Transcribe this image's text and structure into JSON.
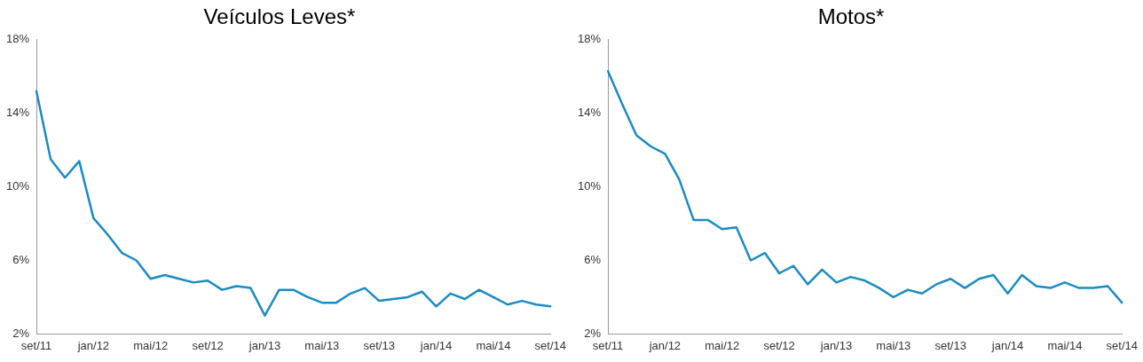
{
  "chart_data": [
    {
      "type": "line",
      "title": "Veículos Leves*",
      "categories": [
        "set/11",
        null,
        null,
        null,
        "jan/12",
        null,
        null,
        null,
        "mai/12",
        null,
        null,
        null,
        "set/12",
        null,
        null,
        null,
        "jan/13",
        null,
        null,
        null,
        "mai/13",
        null,
        null,
        null,
        "set/13",
        null,
        null,
        null,
        "jan/14",
        null,
        null,
        null,
        "mai/14",
        null,
        null,
        null,
        "set/14"
      ],
      "series": [
        {
          "color": "#1a8bc5",
          "values": [
            15.2,
            11.5,
            10.5,
            11.4,
            8.3,
            7.4,
            6.4,
            6.0,
            5.0,
            5.2,
            5.0,
            4.8,
            4.9,
            4.4,
            4.6,
            4.5,
            3.0,
            4.4,
            4.4,
            4.0,
            3.7,
            3.7,
            4.2,
            4.5,
            3.8,
            3.9,
            4.0,
            4.3,
            3.5,
            4.2,
            3.9,
            4.4,
            4.0,
            3.6,
            3.8,
            3.6,
            3.5
          ]
        }
      ],
      "ylim": [
        2,
        18
      ],
      "yticks": [
        {
          "value": 2,
          "label": "2%"
        },
        {
          "value": 6,
          "label": "6%"
        },
        {
          "value": 10,
          "label": "10%"
        },
        {
          "value": 14,
          "label": "14%"
        },
        {
          "value": 18,
          "label": "18%"
        }
      ],
      "legend": false,
      "marker": "none"
    },
    {
      "type": "line",
      "title": "Motos*",
      "categories": [
        "set/11",
        null,
        null,
        null,
        "jan/12",
        null,
        null,
        null,
        "mai/12",
        null,
        null,
        null,
        "set/12",
        null,
        null,
        null,
        "jan/13",
        null,
        null,
        null,
        "mai/13",
        null,
        null,
        null,
        "set/13",
        null,
        null,
        null,
        "jan/14",
        null,
        null,
        null,
        "mai/14",
        null,
        null,
        null,
        "set/14"
      ],
      "series": [
        {
          "color": "#1a8bc5",
          "values": [
            16.3,
            14.5,
            12.8,
            12.2,
            11.8,
            10.4,
            8.2,
            8.2,
            7.7,
            7.8,
            6.0,
            6.4,
            5.3,
            5.7,
            4.7,
            5.5,
            4.8,
            5.1,
            4.9,
            4.5,
            4.0,
            4.4,
            4.2,
            4.7,
            5.0,
            4.5,
            5.0,
            5.2,
            4.2,
            5.2,
            4.6,
            4.5,
            4.8,
            4.5,
            4.5,
            4.6,
            3.7
          ]
        }
      ],
      "ylim": [
        2,
        18
      ],
      "yticks": [
        {
          "value": 2,
          "label": "2%"
        },
        {
          "value": 6,
          "label": "6%"
        },
        {
          "value": 10,
          "label": "10%"
        },
        {
          "value": 14,
          "label": "14%"
        },
        {
          "value": 18,
          "label": "18%"
        }
      ],
      "legend": false,
      "marker": "none"
    }
  ]
}
